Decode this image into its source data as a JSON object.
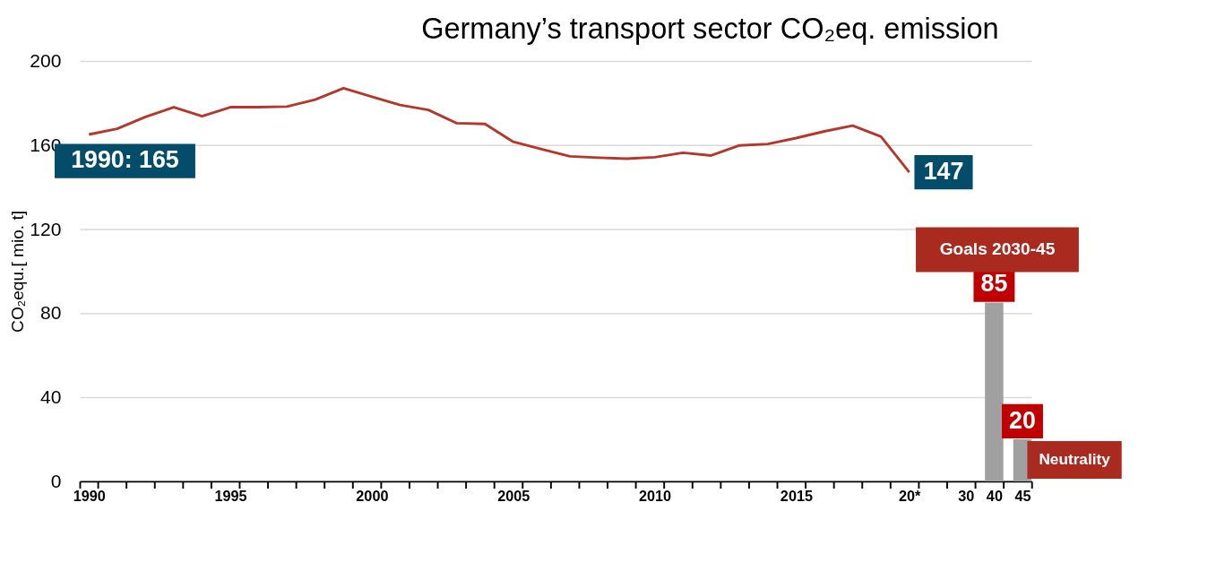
{
  "chart_data": {
    "type": "line",
    "title": "Germany’s transport sector CO₂eq. emission",
    "ylabel": "CO₂equ.[ mio. t]",
    "categories": [
      "1990",
      null,
      null,
      null,
      null,
      "1995",
      null,
      null,
      null,
      null,
      "2000",
      null,
      null,
      null,
      null,
      "2005",
      null,
      null,
      null,
      null,
      "2010",
      null,
      null,
      null,
      null,
      "2015",
      null,
      null,
      null,
      "20*",
      null,
      "30",
      "40",
      "45"
    ],
    "series": [
      {
        "color": "#b5372b",
        "values": [
          165,
          167.7,
          173.4,
          178,
          173.7,
          178,
          178,
          178.3,
          181.6,
          187,
          183,
          179,
          176.7,
          170.4,
          170,
          161.5,
          158,
          154.6,
          154,
          153.5,
          154.2,
          156.3,
          155,
          159.8,
          160.5,
          163.3,
          166.5,
          169.2,
          164,
          147,
          null,
          null,
          null,
          null
        ]
      },
      {
        "type": "bar",
        "color": "#a0a0a0",
        "values": [
          null,
          null,
          null,
          null,
          null,
          null,
          null,
          null,
          null,
          null,
          null,
          null,
          null,
          null,
          null,
          null,
          null,
          null,
          null,
          null,
          null,
          null,
          null,
          null,
          null,
          null,
          null,
          null,
          null,
          null,
          null,
          null,
          85,
          20
        ],
        "value_labels": [
          null,
          null,
          null,
          null,
          null,
          null,
          null,
          null,
          null,
          null,
          null,
          null,
          null,
          null,
          null,
          null,
          null,
          null,
          null,
          null,
          null,
          null,
          null,
          null,
          null,
          null,
          null,
          null,
          null,
          null,
          null,
          null,
          "85",
          "20"
        ]
      }
    ],
    "ylim": [
      0,
      200
    ],
    "yticks": [
      0,
      40,
      80,
      120,
      160,
      200
    ],
    "grid": "y",
    "annotations": [
      {
        "text": "1990: 165",
        "x": "1990",
        "y": 165
      },
      {
        "text": "147",
        "x": "20*",
        "y": 147
      },
      "Goals 2030-45",
      "Neutrality"
    ]
  }
}
